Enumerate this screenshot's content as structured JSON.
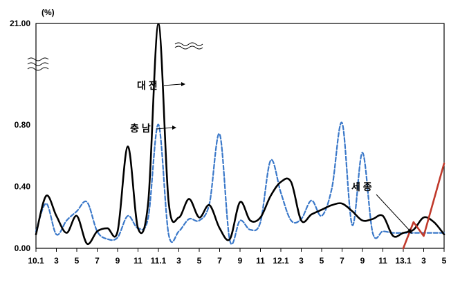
{
  "chart_data": {
    "type": "line",
    "unit_label": "(%)",
    "y_tick_labels": [
      "21.00",
      "0.80",
      "0.40",
      "0.00"
    ],
    "y_tick_values": [
      21.0,
      0.8,
      0.4,
      0.0
    ],
    "y_axis_break": true,
    "ylim": [
      0,
      21.0
    ],
    "x_tick_labels": [
      "10.1",
      "3",
      "5",
      "7",
      "9",
      "11",
      "11.1",
      "3",
      "5",
      "7",
      "9",
      "11",
      "12.1",
      "3",
      "5",
      "7",
      "9",
      "11",
      "13.1",
      "3",
      "5"
    ],
    "x_tick_months": [
      0,
      2,
      4,
      6,
      8,
      10,
      12,
      14,
      16,
      18,
      20,
      22,
      24,
      26,
      28,
      30,
      32,
      34,
      36,
      38,
      40
    ],
    "x_range": [
      0,
      40
    ],
    "grid": false,
    "legend": "none",
    "series": [
      {
        "name": "대 전",
        "style": "solid",
        "color": "#000000",
        "x": [
          0,
          1,
          2,
          3,
          4,
          5,
          6,
          7,
          8,
          9,
          10,
          11,
          12,
          13,
          14,
          15,
          16,
          17,
          18,
          19,
          20,
          21,
          22,
          23,
          24,
          25,
          26,
          27,
          28,
          29,
          30,
          31,
          32,
          33,
          34,
          35,
          36,
          37,
          38,
          39,
          40
        ],
        "values": [
          0.09,
          0.34,
          0.21,
          0.1,
          0.21,
          0.03,
          0.11,
          0.13,
          0.11,
          0.66,
          0.13,
          0.3,
          20.9,
          0.3,
          0.2,
          0.32,
          0.2,
          0.28,
          0.13,
          0.06,
          0.3,
          0.18,
          0.2,
          0.34,
          0.43,
          0.43,
          0.18,
          0.22,
          0.25,
          0.28,
          0.29,
          0.24,
          0.18,
          0.19,
          0.21,
          0.08,
          0.1,
          0.12,
          0.2,
          0.17,
          0.09
        ]
      },
      {
        "name": "충 남",
        "style": "dashed",
        "color": "#3a78c9",
        "x": [
          0,
          1,
          2,
          3,
          4,
          5,
          6,
          7,
          8,
          9,
          10,
          11,
          12,
          13,
          14,
          15,
          16,
          17,
          18,
          19,
          20,
          21,
          22,
          23,
          24,
          25,
          26,
          27,
          28,
          29,
          30,
          31,
          32,
          33,
          34,
          35,
          36,
          37,
          38,
          39,
          40
        ],
        "values": [
          0.11,
          0.29,
          0.09,
          0.18,
          0.24,
          0.3,
          0.11,
          0.06,
          0.07,
          0.21,
          0.13,
          0.2,
          0.86,
          0.09,
          0.11,
          0.19,
          0.18,
          0.29,
          0.74,
          0.05,
          0.18,
          0.12,
          0.17,
          0.57,
          0.36,
          0.18,
          0.19,
          0.31,
          0.21,
          0.39,
          1.18,
          0.15,
          0.62,
          0.1,
          0.11,
          0.1,
          0.1,
          0.1,
          0.1,
          0.1,
          0.1
        ]
      },
      {
        "name": "세 종",
        "style": "solid",
        "color": "#c0392b",
        "x": [
          36,
          37,
          38,
          40
        ],
        "values": [
          0.0,
          0.17,
          0.08,
          0.55
        ]
      }
    ],
    "annotations": [
      {
        "text": "대 전",
        "target_series": "대 전"
      },
      {
        "text": "충 남",
        "target_series": "충 남"
      },
      {
        "text": "세 종",
        "target_series": "세 종"
      }
    ]
  }
}
